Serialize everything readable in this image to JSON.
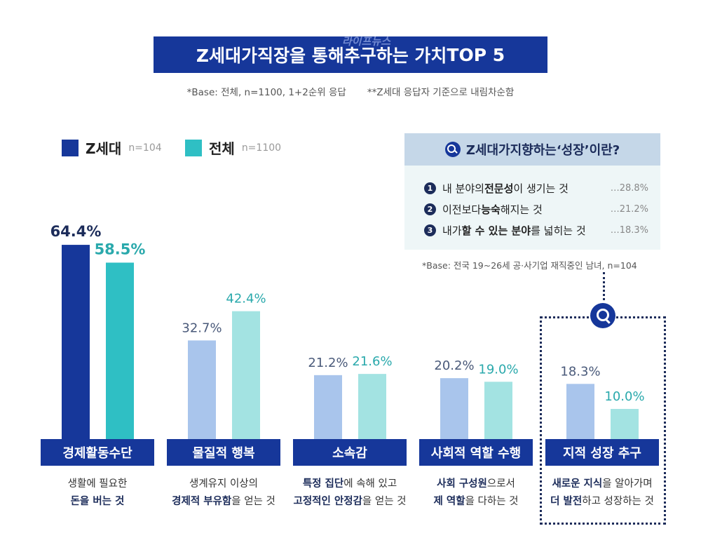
{
  "title": {
    "pre": "Z세대가 ",
    "b1": "직장",
    "mid1": "을 통해 ",
    "b2": "추구하는 가치",
    "suffix": " TOP 5"
  },
  "watermark": "라이프뉴스",
  "base_note": {
    "left": "*Base: 전체, n=1100, 1+2순위 응답",
    "right": "**Z세대 응답자 기준으로 내림차순함"
  },
  "legend": [
    {
      "name": "Z세대",
      "sub": "n=104",
      "color": "#16379a"
    },
    {
      "name": "전체",
      "sub": "n=1100",
      "color": "#2fbfc4"
    }
  ],
  "infobox": {
    "head": {
      "pre": "Z세대가 ",
      "b": "지향",
      "mid": "하는 ",
      "q": "‘성장’",
      "post": "이란?"
    },
    "items": [
      {
        "num": "1",
        "pre": "내 분야의 ",
        "b": "전문성",
        "post": "이 생기는 것",
        "pct": "…28.8%"
      },
      {
        "num": "2",
        "pre": "이전보다 ",
        "b": "능숙",
        "post": "해지는 것",
        "pct": "…21.2%"
      },
      {
        "num": "3",
        "pre": "내가 ",
        "b": "할 수 있는 분야",
        "post": "를 넓히는 것",
        "pct": "…18.3%"
      }
    ],
    "base": "*Base: 전국 19~26세 공·사기업 재직중인 남녀, n=104"
  },
  "chart_data": {
    "type": "bar",
    "title": "Z세대가 직장을 통해 추구하는 가치 TOP 5",
    "categories": [
      "경제활동수단",
      "물질적 행복",
      "소속감",
      "사회적 역할 수행",
      "지적 성장 추구"
    ],
    "series": [
      {
        "name": "Z세대",
        "values": [
          64.4,
          32.7,
          21.2,
          20.2,
          18.3
        ],
        "labels": [
          "64.4%",
          "32.7%",
          "21.2%",
          "20.2%",
          "18.3%"
        ]
      },
      {
        "name": "전체",
        "values": [
          58.5,
          42.4,
          21.6,
          19.0,
          10.0
        ],
        "labels": [
          "58.5%",
          "42.4%",
          "21.6%",
          "19.0%",
          "10.0%"
        ]
      }
    ],
    "ylim": [
      0,
      70
    ],
    "colors": {
      "z_top": "#16379a",
      "z": "#a9c5ec",
      "all_top": "#2fbfc4",
      "all": "#a3e3e2",
      "label_z_top": "#1c2c5a",
      "label_z": "#4a5a7a",
      "label_all": "#2aa9ac"
    }
  },
  "descriptions": [
    {
      "pre": "생활에 필요한",
      "b": "돈을 버는 것",
      "post": ""
    },
    {
      "pre": "생계유지 이상의",
      "b": "경제적 부유함",
      "post": "을 얻는 것"
    },
    {
      "pre": "",
      "b1": "특정 집단",
      "mid": "에 속해 있고",
      "b": "고정적인 안정감",
      "post": "을 얻는 것"
    },
    {
      "pre": "",
      "b1": "사회 구성원",
      "mid": "으로서",
      "b": "제 역할",
      "post": "을 다하는 것"
    },
    {
      "pre": "",
      "b1": "새로운 지식",
      "mid": "을 알아가며",
      "b": "더 발전",
      "post": "하고 성장하는 것"
    }
  ]
}
